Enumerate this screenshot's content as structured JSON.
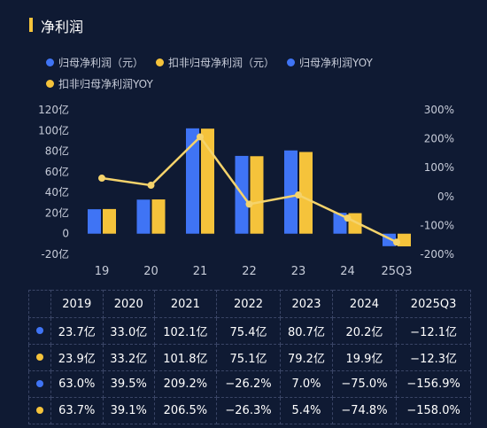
{
  "title": "净利润",
  "legend": [
    {
      "label": "归母净利润（元）",
      "color": "#3f74f5"
    },
    {
      "label": "扣非归母净利润（元）",
      "color": "#f5c33b"
    },
    {
      "label": "归母净利润YOY",
      "color": "#3f74f5"
    },
    {
      "label": "扣非归母净利润YOY",
      "color": "#f5c33b"
    }
  ],
  "chart_data": {
    "type": "bar",
    "categories": [
      "19",
      "20",
      "21",
      "22",
      "23",
      "24",
      "25Q3"
    ],
    "left_ticks": [
      "120亿",
      "100亿",
      "80亿",
      "60亿",
      "40亿",
      "20亿",
      "0",
      "-20亿"
    ],
    "right_ticks": [
      "300%",
      "200%",
      "100%",
      "0%",
      "-100%",
      "-200%"
    ],
    "ylim_left": [
      -20,
      120
    ],
    "ylim_right": [
      -200,
      300
    ],
    "series": [
      {
        "name": "归母净利润（元）",
        "type": "bar",
        "color": "#3f74f5",
        "values": [
          23.7,
          33.0,
          102.1,
          75.4,
          80.7,
          20.2,
          -12.1
        ]
      },
      {
        "name": "扣非归母净利润（元）",
        "type": "bar",
        "color": "#f5c33b",
        "values": [
          23.9,
          33.2,
          101.8,
          75.1,
          79.2,
          19.9,
          -12.3
        ]
      },
      {
        "name": "扣非归母净利润YOY",
        "type": "line",
        "color": "#f5d36b",
        "values": [
          63.7,
          39.1,
          206.5,
          -26.3,
          5.4,
          -74.8,
          -158.0
        ]
      }
    ]
  },
  "table": {
    "headers": [
      "2019",
      "2020",
      "2021",
      "2022",
      "2023",
      "2024",
      "2025Q3"
    ],
    "rows": [
      {
        "color": "#3f74f5",
        "values": [
          "23.7亿",
          "33.0亿",
          "102.1亿",
          "75.4亿",
          "80.7亿",
          "20.2亿",
          "−12.1亿"
        ]
      },
      {
        "color": "#f5c33b",
        "values": [
          "23.9亿",
          "33.2亿",
          "101.8亿",
          "75.1亿",
          "79.2亿",
          "19.9亿",
          "−12.3亿"
        ]
      },
      {
        "color": "#3f74f5",
        "values": [
          "63.0%",
          "39.5%",
          "209.2%",
          "−26.2%",
          "7.0%",
          "−75.0%",
          "−156.9%"
        ]
      },
      {
        "color": "#f5c33b",
        "values": [
          "63.7%",
          "39.1%",
          "206.5%",
          "−26.3%",
          "5.4%",
          "−74.8%",
          "−158.0%"
        ]
      }
    ]
  }
}
